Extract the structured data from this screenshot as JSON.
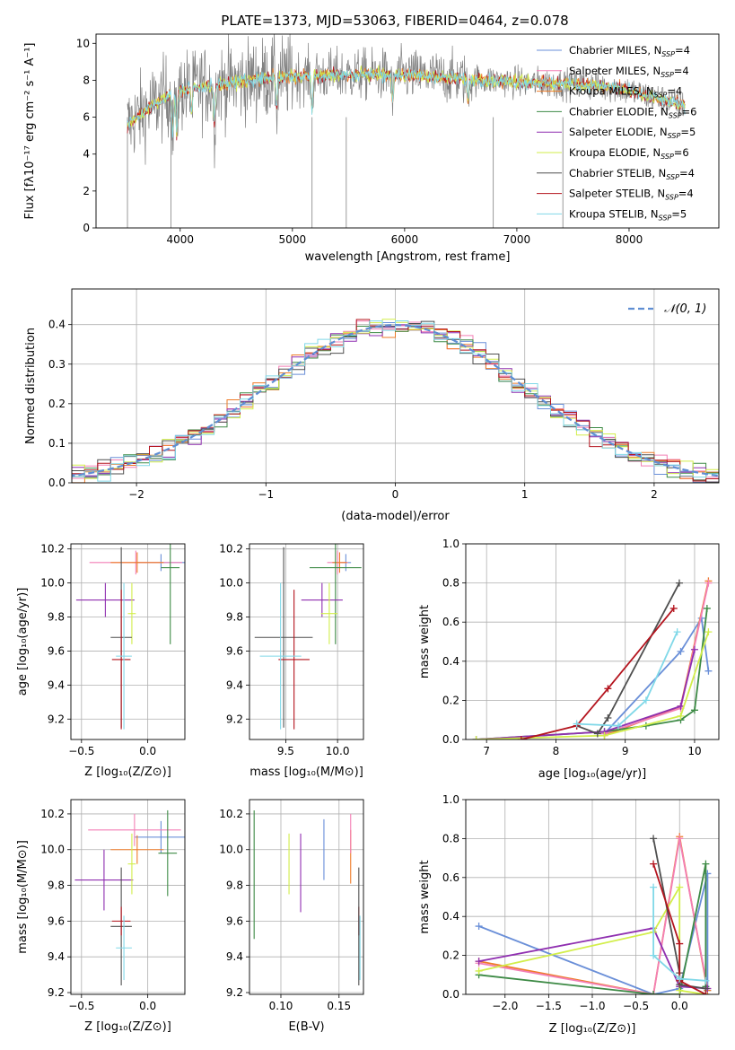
{
  "figure_title": "PLATE=1373, MJD=53063, FIBERID=0464, z=0.078",
  "colors": {
    "chabrier_miles": "#6a8fd8",
    "salpeter_miles": "#f37fb5",
    "kroupa_miles": "#ee7b27",
    "chabrier_elodie": "#3d8a45",
    "salpeter_elodie": "#8f2fb0",
    "kroupa_elodie": "#d2ee4a",
    "chabrier_stelib": "#4f4f4f",
    "salpeter_stelib": "#b4141e",
    "kroupa_stelib": "#80d8e8",
    "gauss": "#5f8ed3",
    "data": "#808080"
  },
  "chart_data": [
    {
      "id": "spectrum",
      "type": "line",
      "title": "PLATE=1373, MJD=53063, FIBERID=0464, z=0.078",
      "xlabel": "wavelength [Angstrom, rest frame]",
      "ylabel": "Flux [fλ10⁻¹⁷ erg cm⁻² s⁻¹ A⁻¹]",
      "xlim": [
        3250,
        8800
      ],
      "ylim": [
        0,
        10.5
      ],
      "xticks": [
        4000,
        5000,
        6000,
        7000,
        8000
      ],
      "yticks": [
        0,
        2,
        4,
        6,
        8,
        10
      ],
      "legend": [
        "Chabrier MILES, N_SSP=4",
        "Salpeter MILES, N_SSP=4",
        "Kroupa MILES, N_SSP=4",
        "Chabrier ELODIE, N_SSP=6",
        "Salpeter ELODIE, N_SSP=5",
        "Kroupa ELODIE, N_SSP=6",
        "Chabrier STELIB, N_SSP=4",
        "Salpeter STELIB, N_SSP=4",
        "Kroupa STELIB, N_SSP=5"
      ],
      "legend_placement": "right",
      "continuum": [
        [
          3530,
          5.6
        ],
        [
          3700,
          6.4
        ],
        [
          3900,
          7.2
        ],
        [
          4100,
          7.6
        ],
        [
          4400,
          7.8
        ],
        [
          4700,
          8.1
        ],
        [
          5000,
          8.2
        ],
        [
          5500,
          8.3
        ],
        [
          6000,
          8.3
        ],
        [
          6500,
          8.1
        ],
        [
          7000,
          7.9
        ],
        [
          7500,
          7.8
        ],
        [
          7900,
          7.6
        ],
        [
          8250,
          7.0
        ],
        [
          8500,
          6.6
        ]
      ],
      "absorption_features": [
        [
          3934,
          5.0
        ],
        [
          3969,
          5.0
        ],
        [
          4102,
          6.2
        ],
        [
          4304,
          5.5
        ],
        [
          4861,
          6.6
        ],
        [
          5175,
          6.3
        ],
        [
          5893,
          6.8
        ],
        [
          6563,
          6.9
        ]
      ],
      "data_gaps": [
        3530,
        3918,
        5175,
        5480,
        6790,
        7410
      ]
    },
    {
      "id": "residuals",
      "type": "line",
      "xlabel": "(data-model)/error",
      "ylabel": "Normed distribution",
      "xlim": [
        -2.5,
        2.5
      ],
      "ylim": [
        0,
        0.49
      ],
      "xticks": [
        -2,
        -1,
        0,
        1,
        2
      ],
      "xtick_labels": [
        "−2",
        "−1",
        "0",
        "1",
        "2"
      ],
      "yticks": [
        0.0,
        0.1,
        0.2,
        0.3,
        0.4
      ],
      "yticklabels": [
        "0.0",
        "0.1",
        "0.2",
        "0.3",
        "0.4"
      ],
      "grid": true,
      "legend": [
        "𝒩(0, 1)"
      ],
      "legend_placement": "top-right",
      "histogram_bin_width": 0.1
    },
    {
      "id": "age_vs_Z",
      "type": "scatter",
      "xlabel": "Z [log₁₀(Z/Z⊙)]",
      "ylabel": "age  [log₁₀(age/yr)]",
      "xlim": [
        -0.58,
        0.28
      ],
      "ylim": [
        9.08,
        10.23
      ],
      "xticks": [
        -0.5,
        0.0
      ],
      "xtick_labels": [
        "−0.5",
        "0.0"
      ],
      "yticks": [
        9.2,
        9.4,
        9.6,
        9.8,
        10.0,
        10.2
      ],
      "yticklabels": [
        "9.2",
        "9.4",
        "9.6",
        "9.8",
        "10.0",
        "10.2"
      ],
      "grid": true,
      "points": [
        {
          "key": "chabrier_miles",
          "x": 0.1,
          "xerr": 0.2,
          "y": 10.12,
          "yerr": 0.05
        },
        {
          "key": "salpeter_miles",
          "x": -0.09,
          "xerr": 0.35,
          "y": 10.12,
          "yerr": 0.07
        },
        {
          "key": "kroupa_miles",
          "x": -0.08,
          "xerr": 0.2,
          "y": 10.12,
          "yerr": 0.06
        },
        {
          "key": "chabrier_elodie",
          "x": 0.17,
          "xerr": 0.07,
          "y": 10.09,
          "yerr": 0.45
        },
        {
          "key": "salpeter_elodie",
          "x": -0.32,
          "xerr": 0.22,
          "y": 9.9,
          "yerr": 0.1
        },
        {
          "key": "kroupa_elodie",
          "x": -0.12,
          "xerr": 0.03,
          "y": 9.82,
          "yerr": 0.18
        },
        {
          "key": "chabrier_stelib",
          "x": -0.2,
          "xerr": 0.08,
          "y": 9.68,
          "yerr": 0.53
        },
        {
          "key": "salpeter_stelib",
          "x": -0.2,
          "xerr": 0.07,
          "y": 9.55,
          "yerr": 0.41
        },
        {
          "key": "kroupa_stelib",
          "x": -0.18,
          "xerr": 0.06,
          "y": 9.57,
          "yerr": 0.43
        }
      ]
    },
    {
      "id": "age_vs_mass",
      "type": "scatter",
      "xlabel": "mass [log₁₀(M/M⊙)]",
      "ylabel": "",
      "xlim": [
        9.15,
        10.25
      ],
      "ylim": [
        9.08,
        10.23
      ],
      "xticks": [
        9.5,
        10.0
      ],
      "xtick_labels": [
        "9.5",
        "10.0"
      ],
      "yticks": [
        9.2,
        9.4,
        9.6,
        9.8,
        10.0,
        10.2
      ],
      "yticklabels": [
        "9.2",
        "9.4",
        "9.6",
        "9.8",
        "10.0",
        "10.2"
      ],
      "grid": true,
      "points": [
        {
          "key": "chabrier_miles",
          "x": 10.08,
          "xerr": 0.05,
          "y": 10.12,
          "yerr": 0.05
        },
        {
          "key": "salpeter_miles",
          "x": 10.0,
          "xerr": 0.1,
          "y": 10.12,
          "yerr": 0.07
        },
        {
          "key": "kroupa_miles",
          "x": 10.02,
          "xerr": 0.07,
          "y": 10.12,
          "yerr": 0.06
        },
        {
          "key": "chabrier_elodie",
          "x": 9.98,
          "xerr": 0.25,
          "y": 10.09,
          "yerr": 0.45
        },
        {
          "key": "salpeter_elodie",
          "x": 9.85,
          "xerr": 0.2,
          "y": 9.9,
          "yerr": 0.1
        },
        {
          "key": "kroupa_elodie",
          "x": 9.92,
          "xerr": 0.08,
          "y": 9.82,
          "yerr": 0.18
        },
        {
          "key": "chabrier_stelib",
          "x": 9.48,
          "xerr": 0.28,
          "y": 9.68,
          "yerr": 0.53
        },
        {
          "key": "salpeter_stelib",
          "x": 9.58,
          "xerr": 0.15,
          "y": 9.55,
          "yerr": 0.41
        },
        {
          "key": "kroupa_stelib",
          "x": 9.45,
          "xerr": 0.2,
          "y": 9.57,
          "yerr": 0.43
        }
      ]
    },
    {
      "id": "weight_vs_age",
      "type": "line",
      "xlabel": "age  [log₁₀(age/yr)]",
      "ylabel": "mass weight",
      "xlim": [
        6.7,
        10.35
      ],
      "ylim": [
        0,
        1
      ],
      "xticks": [
        7,
        8,
        9,
        10
      ],
      "xtick_labels": [
        "7",
        "8",
        "9",
        "10"
      ],
      "yticks": [
        0.0,
        0.2,
        0.4,
        0.6,
        0.8,
        1.0
      ],
      "yticklabels": [
        "0.0",
        "0.2",
        "0.4",
        "0.6",
        "0.8",
        "1.0"
      ],
      "grid": true,
      "series": [
        {
          "key": "chabrier_miles",
          "x": [
            8.7,
            9.8,
            10.1,
            10.2
          ],
          "y": [
            0.03,
            0.45,
            0.62,
            0.35
          ]
        },
        {
          "key": "kroupa_miles",
          "x": [
            8.7,
            9.8,
            10.2
          ],
          "y": [
            0.02,
            0.17,
            0.81
          ]
        },
        {
          "key": "salpeter_miles",
          "x": [
            8.7,
            9.8,
            10.2
          ],
          "y": [
            0.03,
            0.16,
            0.8
          ]
        },
        {
          "key": "chabrier_elodie",
          "x": [
            6.85,
            8.7,
            9.3,
            9.8,
            10.0,
            10.18
          ],
          "y": [
            0.0,
            0.04,
            0.07,
            0.1,
            0.15,
            0.67
          ]
        },
        {
          "key": "salpeter_elodie",
          "x": [
            6.85,
            8.7,
            9.8,
            10.0
          ],
          "y": [
            0.0,
            0.04,
            0.17,
            0.46
          ]
        },
        {
          "key": "kroupa_elodie",
          "x": [
            6.85,
            8.7,
            9.8,
            10.2
          ],
          "y": [
            0.0,
            0.02,
            0.12,
            0.55
          ]
        },
        {
          "key": "chabrier_stelib",
          "x": [
            8.3,
            8.6,
            8.75,
            9.78
          ],
          "y": [
            0.07,
            0.03,
            0.11,
            0.8
          ]
        },
        {
          "key": "salpeter_stelib",
          "x": [
            7.5,
            8.3,
            8.75,
            9.7
          ],
          "y": [
            0.0,
            0.07,
            0.26,
            0.67
          ]
        },
        {
          "key": "kroupa_stelib",
          "x": [
            8.3,
            8.9,
            9.3,
            9.75
          ],
          "y": [
            0.08,
            0.07,
            0.2,
            0.55
          ]
        }
      ]
    },
    {
      "id": "mass_vs_Z",
      "type": "scatter",
      "xlabel": "Z [log₁₀(Z/Z⊙)]",
      "ylabel": "mass [log₁₀(M/M⊙)]",
      "xlim": [
        -0.58,
        0.28
      ],
      "ylim": [
        9.19,
        10.28
      ],
      "xticks": [
        -0.5,
        0.0
      ],
      "xtick_labels": [
        "−0.5",
        "0.0"
      ],
      "yticks": [
        9.2,
        9.4,
        9.6,
        9.8,
        10.0,
        10.2
      ],
      "yticklabels": [
        "9.2",
        "9.4",
        "9.6",
        "9.8",
        "10.0",
        "10.2"
      ],
      "grid": true,
      "points": [
        {
          "key": "chabrier_miles",
          "x": 0.1,
          "xerr": 0.2,
          "y": 10.07,
          "yerr": 0.09
        },
        {
          "key": "salpeter_miles",
          "x": -0.1,
          "xerr": 0.35,
          "y": 10.11,
          "yerr": 0.09
        },
        {
          "key": "kroupa_miles",
          "x": -0.08,
          "xerr": 0.2,
          "y": 10.0,
          "yerr": 0.08
        },
        {
          "key": "chabrier_elodie",
          "x": 0.15,
          "xerr": 0.07,
          "y": 9.98,
          "yerr": 0.24
        },
        {
          "key": "salpeter_elodie",
          "x": -0.33,
          "xerr": 0.22,
          "y": 9.83,
          "yerr": 0.17
        },
        {
          "key": "kroupa_elodie",
          "x": -0.12,
          "xerr": 0.03,
          "y": 9.92,
          "yerr": 0.17
        },
        {
          "key": "chabrier_stelib",
          "x": -0.2,
          "xerr": 0.08,
          "y": 9.57,
          "yerr": 0.33
        },
        {
          "key": "salpeter_stelib",
          "x": -0.2,
          "xerr": 0.07,
          "y": 9.6,
          "yerr": 0.08
        },
        {
          "key": "kroupa_stelib",
          "x": -0.18,
          "xerr": 0.06,
          "y": 9.45,
          "yerr": 0.18
        }
      ]
    },
    {
      "id": "mass_vs_ebv",
      "type": "scatter",
      "xlabel": "E(B-V)",
      "ylabel": "",
      "xlim": [
        0.073,
        0.171
      ],
      "ylim": [
        9.19,
        10.28
      ],
      "xticks": [
        0.1,
        0.15
      ],
      "xtick_labels": [
        "0.10",
        "0.15"
      ],
      "yticks": [
        9.2,
        9.4,
        9.6,
        9.8,
        10.0,
        10.2
      ],
      "yticklabels": [
        "9.2",
        "9.4",
        "9.6",
        "9.8",
        "10.0",
        "10.2"
      ],
      "grid": true,
      "points": [
        {
          "key": "chabrier_elodie",
          "x": 0.077,
          "y": 9.86,
          "yerr": 0.36
        },
        {
          "key": "kroupa_elodie",
          "x": 0.107,
          "y": 9.92,
          "yerr": 0.17
        },
        {
          "key": "salpeter_elodie",
          "x": 0.117,
          "y": 9.87,
          "yerr": 0.22
        },
        {
          "key": "chabrier_miles",
          "x": 0.137,
          "y": 10.0,
          "yerr": 0.17
        },
        {
          "key": "kroupa_miles",
          "x": 0.16,
          "y": 9.96,
          "yerr": 0.15
        },
        {
          "key": "salpeter_miles",
          "x": 0.16,
          "y": 10.09,
          "yerr": 0.11
        },
        {
          "key": "salpeter_stelib",
          "x": 0.167,
          "y": 9.6,
          "yerr": 0.08
        },
        {
          "key": "chabrier_stelib",
          "x": 0.167,
          "y": 9.57,
          "yerr": 0.33
        },
        {
          "key": "kroupa_stelib",
          "x": 0.168,
          "y": 9.45,
          "yerr": 0.18
        }
      ]
    },
    {
      "id": "weight_vs_Z",
      "type": "line",
      "xlabel": "Z [log₁₀(Z/Z⊙)]",
      "ylabel": "mass weight",
      "xlim": [
        -2.45,
        0.45
      ],
      "ylim": [
        0,
        1
      ],
      "xticks": [
        -2.0,
        -1.5,
        -1.0,
        -0.5,
        0.0
      ],
      "xtick_labels": [
        "−2.0",
        "−1.5",
        "−1.0",
        "−0.5",
        "0.0"
      ],
      "yticks": [
        0.0,
        0.2,
        0.4,
        0.6,
        0.8,
        1.0
      ],
      "yticklabels": [
        "0.0",
        "0.2",
        "0.4",
        "0.6",
        "0.8",
        "1.0"
      ],
      "grid": true,
      "series": [
        {
          "key": "chabrier_miles",
          "x": [
            -2.3,
            -0.3,
            0.0,
            0.32,
            0.32
          ],
          "y": [
            0.35,
            0.0,
            0.03,
            0.62,
            0.02
          ]
        },
        {
          "key": "kroupa_miles",
          "x": [
            -2.3,
            -0.3,
            0.0,
            0.32
          ],
          "y": [
            0.17,
            0.0,
            0.81,
            0.02
          ]
        },
        {
          "key": "salpeter_miles",
          "x": [
            -2.3,
            -0.3,
            0.0,
            0.32
          ],
          "y": [
            0.16,
            0.0,
            0.8,
            0.03
          ]
        },
        {
          "key": "chabrier_elodie",
          "x": [
            -2.3,
            -0.3,
            0.0,
            0.3,
            0.3
          ],
          "y": [
            0.1,
            0.0,
            0.0,
            0.67,
            0.04
          ]
        },
        {
          "key": "salpeter_elodie",
          "x": [
            -2.3,
            -0.3,
            0.0,
            0.32
          ],
          "y": [
            0.17,
            0.34,
            0.04,
            0.03
          ]
        },
        {
          "key": "kroupa_elodie",
          "x": [
            -2.3,
            -0.3,
            0.0,
            0.0,
            0.3
          ],
          "y": [
            0.12,
            0.32,
            0.55,
            0.02,
            0.0
          ]
        },
        {
          "key": "chabrier_stelib",
          "x": [
            -0.3,
            0.0,
            0.0,
            0.3
          ],
          "y": [
            0.8,
            0.11,
            0.05,
            0.03
          ]
        },
        {
          "key": "salpeter_stelib",
          "x": [
            -0.3,
            0.0,
            0.0,
            0.3
          ],
          "y": [
            0.67,
            0.26,
            0.07,
            0.0
          ]
        },
        {
          "key": "kroupa_stelib",
          "x": [
            -0.3,
            -0.3,
            0.0,
            0.3
          ],
          "y": [
            0.55,
            0.2,
            0.08,
            0.07
          ]
        }
      ]
    }
  ]
}
